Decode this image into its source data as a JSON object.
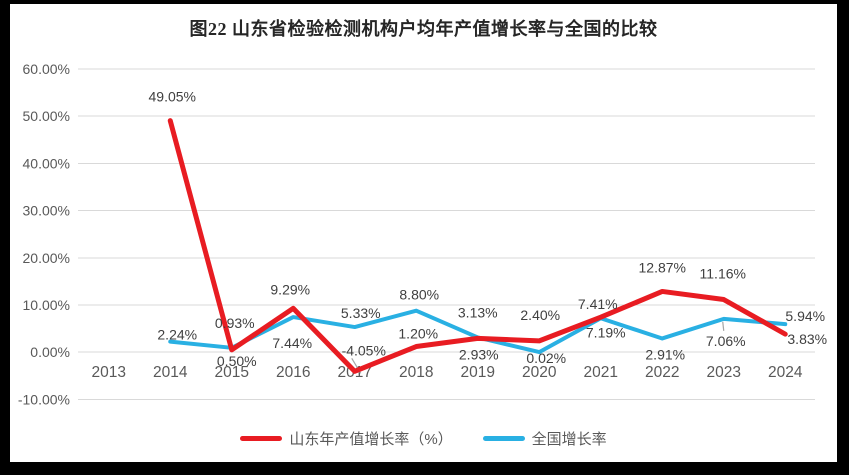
{
  "colors": {
    "frame": "#000000",
    "background": "#FFFFFF",
    "grid": "#D9D9D9",
    "axis_text": "#595959",
    "data_label_text": "#404040",
    "title_text": "#262626",
    "leader": "#A6A6A6",
    "shandong_red": "#E81C22",
    "national_blue": "#29B0E3"
  },
  "chart_data": {
    "type": "line",
    "title": "图22 山东省检验检测机构户均年产值增长率与全国的比较",
    "categories": [
      "2013",
      "2014",
      "2015",
      "2016",
      "2017",
      "2018",
      "2019",
      "2020",
      "2021",
      "2022",
      "2023",
      "2024"
    ],
    "y_axis": {
      "min": -10,
      "max": 60,
      "step": 10,
      "tick_labels": [
        "60.00%",
        "50.00%",
        "40.00%",
        "30.00%",
        "20.00%",
        "10.00%",
        "0.00%",
        "-10.00%"
      ],
      "grid": true
    },
    "legend_position": "bottom",
    "series": [
      {
        "name": "山东年产值增长率（%）",
        "color": "#E81C22",
        "line_width": 5,
        "values": [
          null,
          49.05,
          0.5,
          9.29,
          -4.05,
          1.2,
          2.93,
          2.4,
          7.41,
          12.87,
          11.16,
          3.83
        ],
        "data_labels": [
          "",
          "49.05%",
          "0.50%",
          "9.29%",
          "-4.05%",
          "1.20%",
          "2.93%",
          "2.40%",
          "7.41%",
          "12.87%",
          "11.16%",
          "3.83%"
        ],
        "label_offsets": [
          [
            0,
            0
          ],
          [
            2,
            -24
          ],
          [
            5,
            11
          ],
          [
            -3,
            -19
          ],
          [
            9,
            -21
          ],
          [
            2,
            -13
          ],
          [
            1,
            16
          ],
          [
            1,
            -26
          ],
          [
            -3,
            -13
          ],
          [
            0,
            -24
          ],
          [
            -1,
            -26
          ],
          [
            22,
            5
          ]
        ],
        "leaders": [
          {
            "index": 4,
            "from": [
              -3,
              -13
            ],
            "to": [
              6,
              2
            ]
          }
        ]
      },
      {
        "name": "全国增长率",
        "color": "#29B0E3",
        "line_width": 4,
        "values": [
          null,
          2.24,
          0.93,
          7.44,
          5.33,
          8.8,
          3.13,
          0.02,
          7.19,
          2.91,
          7.06,
          5.94
        ],
        "data_labels": [
          "",
          "2.24%",
          "0.93%",
          "7.44%",
          "5.33%",
          "8.80%",
          "3.13%",
          "0.02%",
          "7.19%",
          "2.91%",
          "7.06%",
          "5.94%"
        ],
        "label_offsets": [
          [
            0,
            0
          ],
          [
            7,
            -7
          ],
          [
            3,
            -25
          ],
          [
            -1,
            26
          ],
          [
            6,
            -14
          ],
          [
            3,
            -16
          ],
          [
            0,
            -25
          ],
          [
            7,
            6
          ],
          [
            5,
            14
          ],
          [
            3,
            16
          ],
          [
            2,
            22
          ],
          [
            20,
            -8
          ]
        ],
        "leaders": [
          {
            "index": 10,
            "from": [
              -1,
              3
            ],
            "to": [
              0,
              12
            ]
          }
        ]
      }
    ]
  }
}
